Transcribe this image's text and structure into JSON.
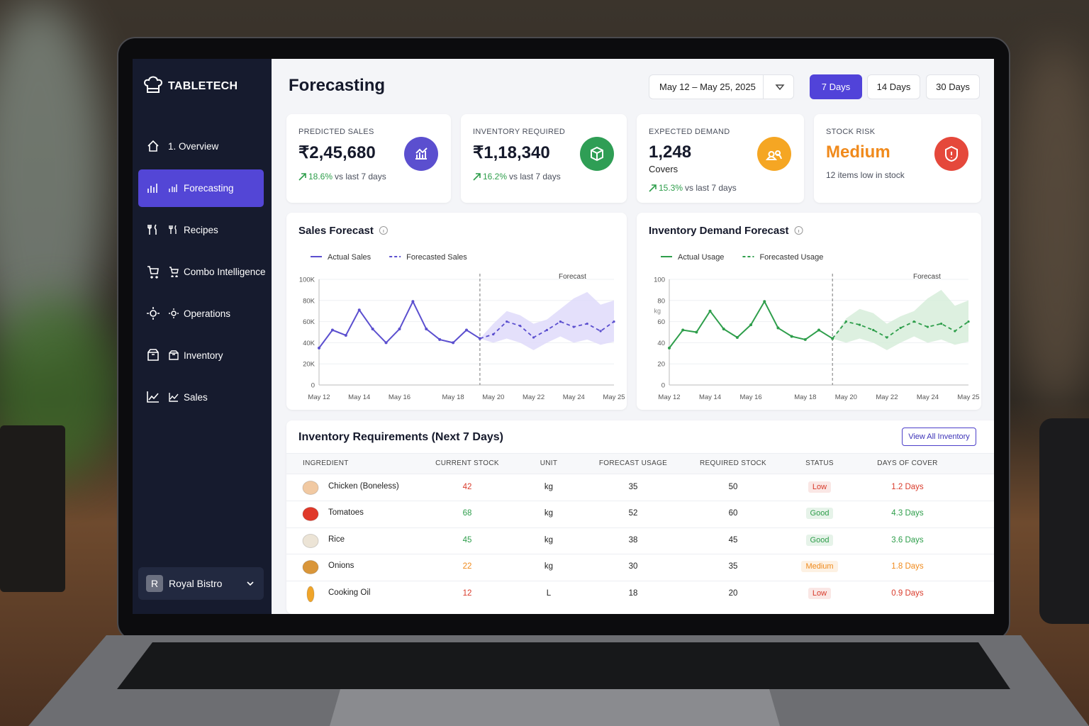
{
  "brand": "TABLETECH",
  "nav": {
    "items": [
      {
        "label": "1. Overview"
      },
      {
        "label": "Forecasting",
        "active": true
      },
      {
        "label": "Recipes"
      },
      {
        "label": "Combo Intelligence"
      },
      {
        "label": "Operations"
      },
      {
        "label": "Inventory"
      },
      {
        "label": "Sales"
      }
    ]
  },
  "restaurant": {
    "avatar": "R",
    "name": "Royal Bistro"
  },
  "header": {
    "title": "Forecasting",
    "date_range": "May 12 – May 25, 2025",
    "ranges": [
      {
        "label": "7 Days",
        "active": true
      },
      {
        "label": "14 Days"
      },
      {
        "label": "30 Days"
      }
    ]
  },
  "kpis": [
    {
      "label": "PREDICTED SALES",
      "value": "₹2,45,680",
      "change": "18.6%",
      "note": "vs last 7 days",
      "color": "#5b4fcf"
    },
    {
      "label": "INVENTORY REQUIRED",
      "value": "₹1,18,340",
      "change": "16.2%",
      "note": "vs last 7 days",
      "color": "#2f9e55"
    },
    {
      "label": "EXPECTED DEMAND",
      "value": "1,248",
      "unit": "Covers",
      "change": "15.3%",
      "note": "vs last 7 days",
      "color": "#f5a623"
    },
    {
      "label": "STOCK RISK",
      "value": "Medium",
      "value_color": "#f08a1c",
      "note": "12 items low in stock",
      "color": "#e5483b"
    }
  ],
  "chart_data": [
    {
      "type": "line",
      "title": "Sales Forecast",
      "annotation": "Forecast",
      "categories": [
        "May 12",
        null,
        null,
        "May 14",
        null,
        null,
        "May 16",
        null,
        null,
        null,
        "May 18",
        null,
        null,
        "May 20",
        null,
        null,
        "May 22",
        null,
        null,
        "May 24",
        null,
        null,
        "May 25"
      ],
      "series": [
        {
          "name": "Actual Sales",
          "color": "#5b4fcf",
          "values": [
            35000,
            52000,
            47000,
            71000,
            53000,
            40000,
            53000,
            79000,
            53000,
            43000,
            40000,
            52000,
            44000,
            null,
            null,
            null,
            null,
            null,
            null,
            null,
            null,
            null,
            null
          ]
        },
        {
          "name": "Forecasted Sales",
          "color": "#5b4fcf",
          "dashed": true,
          "values": [
            null,
            null,
            null,
            null,
            null,
            null,
            null,
            null,
            null,
            null,
            null,
            null,
            44000,
            48000,
            60000,
            56000,
            45000,
            52000,
            60000,
            55000,
            58000,
            51000,
            60000
          ]
        }
      ],
      "band": {
        "color": "#ddd8fa",
        "upper": [
          null,
          null,
          null,
          null,
          null,
          null,
          null,
          null,
          null,
          null,
          null,
          null,
          44000,
          58000,
          70000,
          66000,
          58000,
          62000,
          72000,
          82000,
          88000,
          76000,
          80000
        ],
        "lower": [
          null,
          null,
          null,
          null,
          null,
          null,
          null,
          null,
          null,
          null,
          null,
          null,
          44000,
          40000,
          44000,
          40000,
          33000,
          40000,
          46000,
          40000,
          43000,
          38000,
          41000
        ]
      },
      "ylim": [
        0,
        100000
      ],
      "yticks": [
        0,
        {
          "value": 20000,
          "label": "20K"
        },
        {
          "value": 40000,
          "label": "40K"
        },
        {
          "value": 60000,
          "label": "60K"
        },
        {
          "value": 80000,
          "label": "80K"
        },
        {
          "value": 100000,
          "label": "100K"
        }
      ],
      "grid": true
    },
    {
      "type": "line",
      "title": "Inventory Demand Forecast",
      "annotation": "Forecast",
      "y_unit": "kg",
      "categories": [
        "May 12",
        null,
        null,
        "May 14",
        null,
        null,
        "May 16",
        null,
        null,
        null,
        "May 18",
        null,
        null,
        "May 20",
        null,
        null,
        "May 22",
        null,
        null,
        "May 24",
        null,
        null,
        "May 25"
      ],
      "series": [
        {
          "name": "Actual Usage",
          "color": "#2e9e4b",
          "values": [
            35,
            52,
            50,
            70,
            53,
            45,
            57,
            79,
            54,
            46,
            43,
            52,
            44,
            null,
            null,
            null,
            null,
            null,
            null,
            null,
            null,
            null,
            null
          ]
        },
        {
          "name": "Forecasted Usage",
          "color": "#2e9e4b",
          "dashed": true,
          "values": [
            null,
            null,
            null,
            null,
            null,
            null,
            null,
            null,
            null,
            null,
            null,
            null,
            44,
            60,
            57,
            52,
            45,
            54,
            60,
            55,
            58,
            51,
            60
          ]
        }
      ],
      "band": {
        "color": "#d4ecd8",
        "upper": [
          null,
          null,
          null,
          null,
          null,
          null,
          null,
          null,
          null,
          null,
          null,
          null,
          44,
          63,
          72,
          68,
          58,
          65,
          70,
          82,
          90,
          75,
          80
        ],
        "lower": [
          null,
          null,
          null,
          null,
          null,
          null,
          null,
          null,
          null,
          null,
          null,
          null,
          44,
          40,
          44,
          40,
          33,
          40,
          46,
          40,
          43,
          38,
          41
        ]
      },
      "ylim": [
        0,
        100
      ],
      "yticks": [
        0,
        20,
        40,
        60,
        80,
        100
      ],
      "grid": true
    }
  ],
  "table": {
    "title": "Inventory Requirements (Next 7 Days)",
    "button": "View All Inventory",
    "headers": [
      "INGREDIENT",
      "CURRENT STOCK",
      "UNIT",
      "FORECAST USAGE",
      "REQUIRED STOCK",
      "STATUS",
      "DAYS OF COVER"
    ],
    "rows": [
      {
        "cells": [
          "Chicken (Boneless)",
          42,
          "kg",
          35,
          50,
          "Low",
          "1.2 Days"
        ],
        "color": "#d93b2b",
        "icon_color": "#f1c9a2"
      },
      {
        "cells": [
          "Tomatoes",
          68,
          "kg",
          52,
          60,
          "Good",
          "4.3 Days"
        ],
        "color": "#2e9e4b",
        "icon_color": "#e0392a"
      },
      {
        "cells": [
          "Rice",
          45,
          "kg",
          38,
          45,
          "Good",
          "3.6 Days"
        ],
        "color": "#2e9e4b",
        "icon_color": "#ece4d6"
      },
      {
        "cells": [
          "Onions",
          22,
          "kg",
          30,
          35,
          "Medium",
          "1.8 Days"
        ],
        "color": "#f08a1c",
        "icon_color": "#d9963a"
      },
      {
        "cells": [
          "Cooking Oil",
          12,
          "L",
          18,
          20,
          "Low",
          "0.9 Days"
        ],
        "color": "#d93b2b",
        "icon_color": "#f0a52a"
      }
    ]
  }
}
